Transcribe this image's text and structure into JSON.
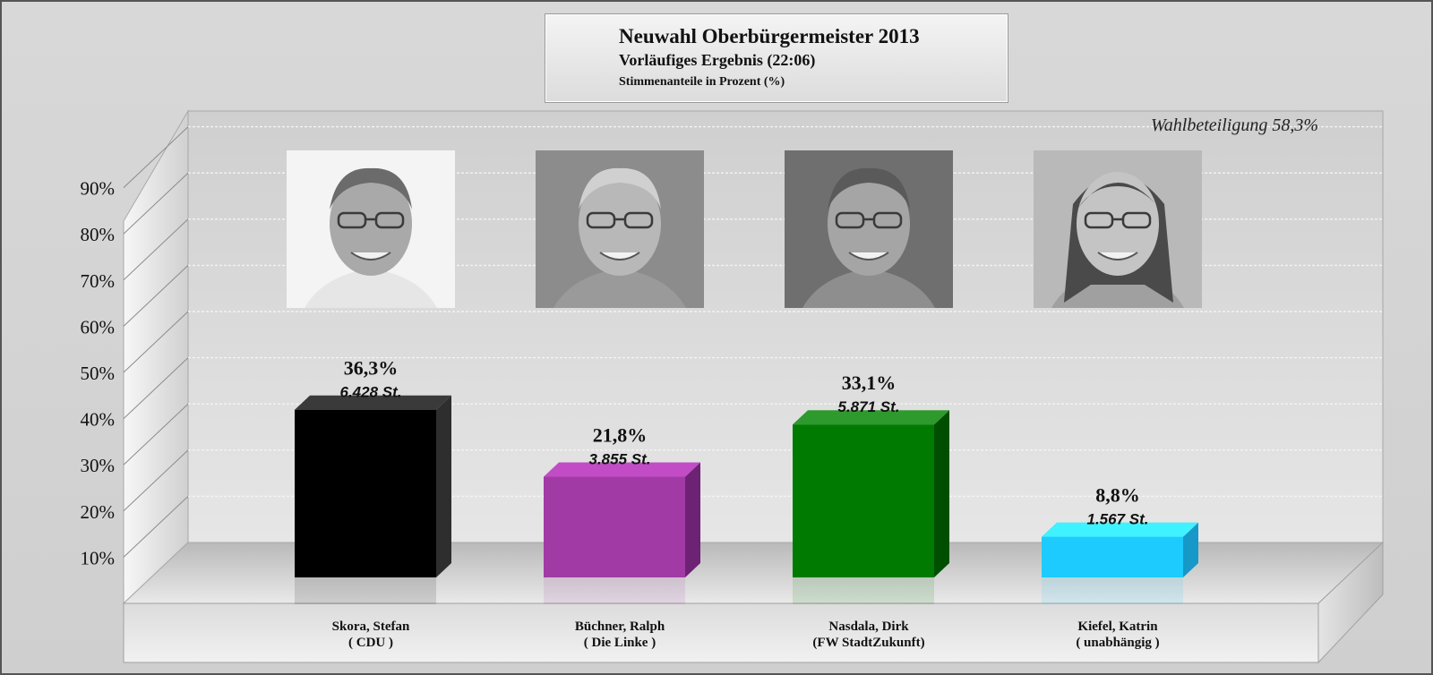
{
  "header": {
    "title": "Neuwahl Oberbürgermeister 2013",
    "subtitle": "Vorläufiges Ergebnis (22:06)",
    "note": "Stimmenanteile in Prozent (%)"
  },
  "turnout": "Wahlbeteiligung 58,3%",
  "chart_data": {
    "type": "bar",
    "title": "Neuwahl Oberbürgermeister 2013",
    "subtitle": "Vorläufiges Ergebnis (22:06)",
    "ylabel": "Stimmenanteile in Prozent (%)",
    "ylim": [
      0,
      100
    ],
    "yticks": [
      "10%",
      "20%",
      "30%",
      "40%",
      "50%",
      "60%",
      "70%",
      "80%",
      "90%"
    ],
    "grid": true,
    "categories": [
      "Skora, Stefan",
      "Büchner, Ralph",
      "Nasdala, Dirk",
      "Kiefel, Katrin"
    ],
    "parties": [
      "( CDU )",
      "( Die Linke )",
      "(FW StadtZukunft)",
      "( unabhängig )"
    ],
    "values": [
      36.3,
      21.8,
      33.1,
      8.8
    ],
    "value_labels": [
      "36,3%",
      "21,8%",
      "33,1%",
      "8,8%"
    ],
    "votes": [
      "6.428 St.",
      "3.855 St.",
      "5.871 St.",
      "1.567 St."
    ],
    "colors": [
      "#000000",
      "#a23aa6",
      "#007a00",
      "#1ecbff"
    ],
    "side_colors": [
      "#2e2e2e",
      "#6e2274",
      "#004f00",
      "#1699c8"
    ],
    "top_colors": [
      "#3a3a3a",
      "#c14cc6",
      "#2e9a2e",
      "#3ff2ff"
    ]
  }
}
